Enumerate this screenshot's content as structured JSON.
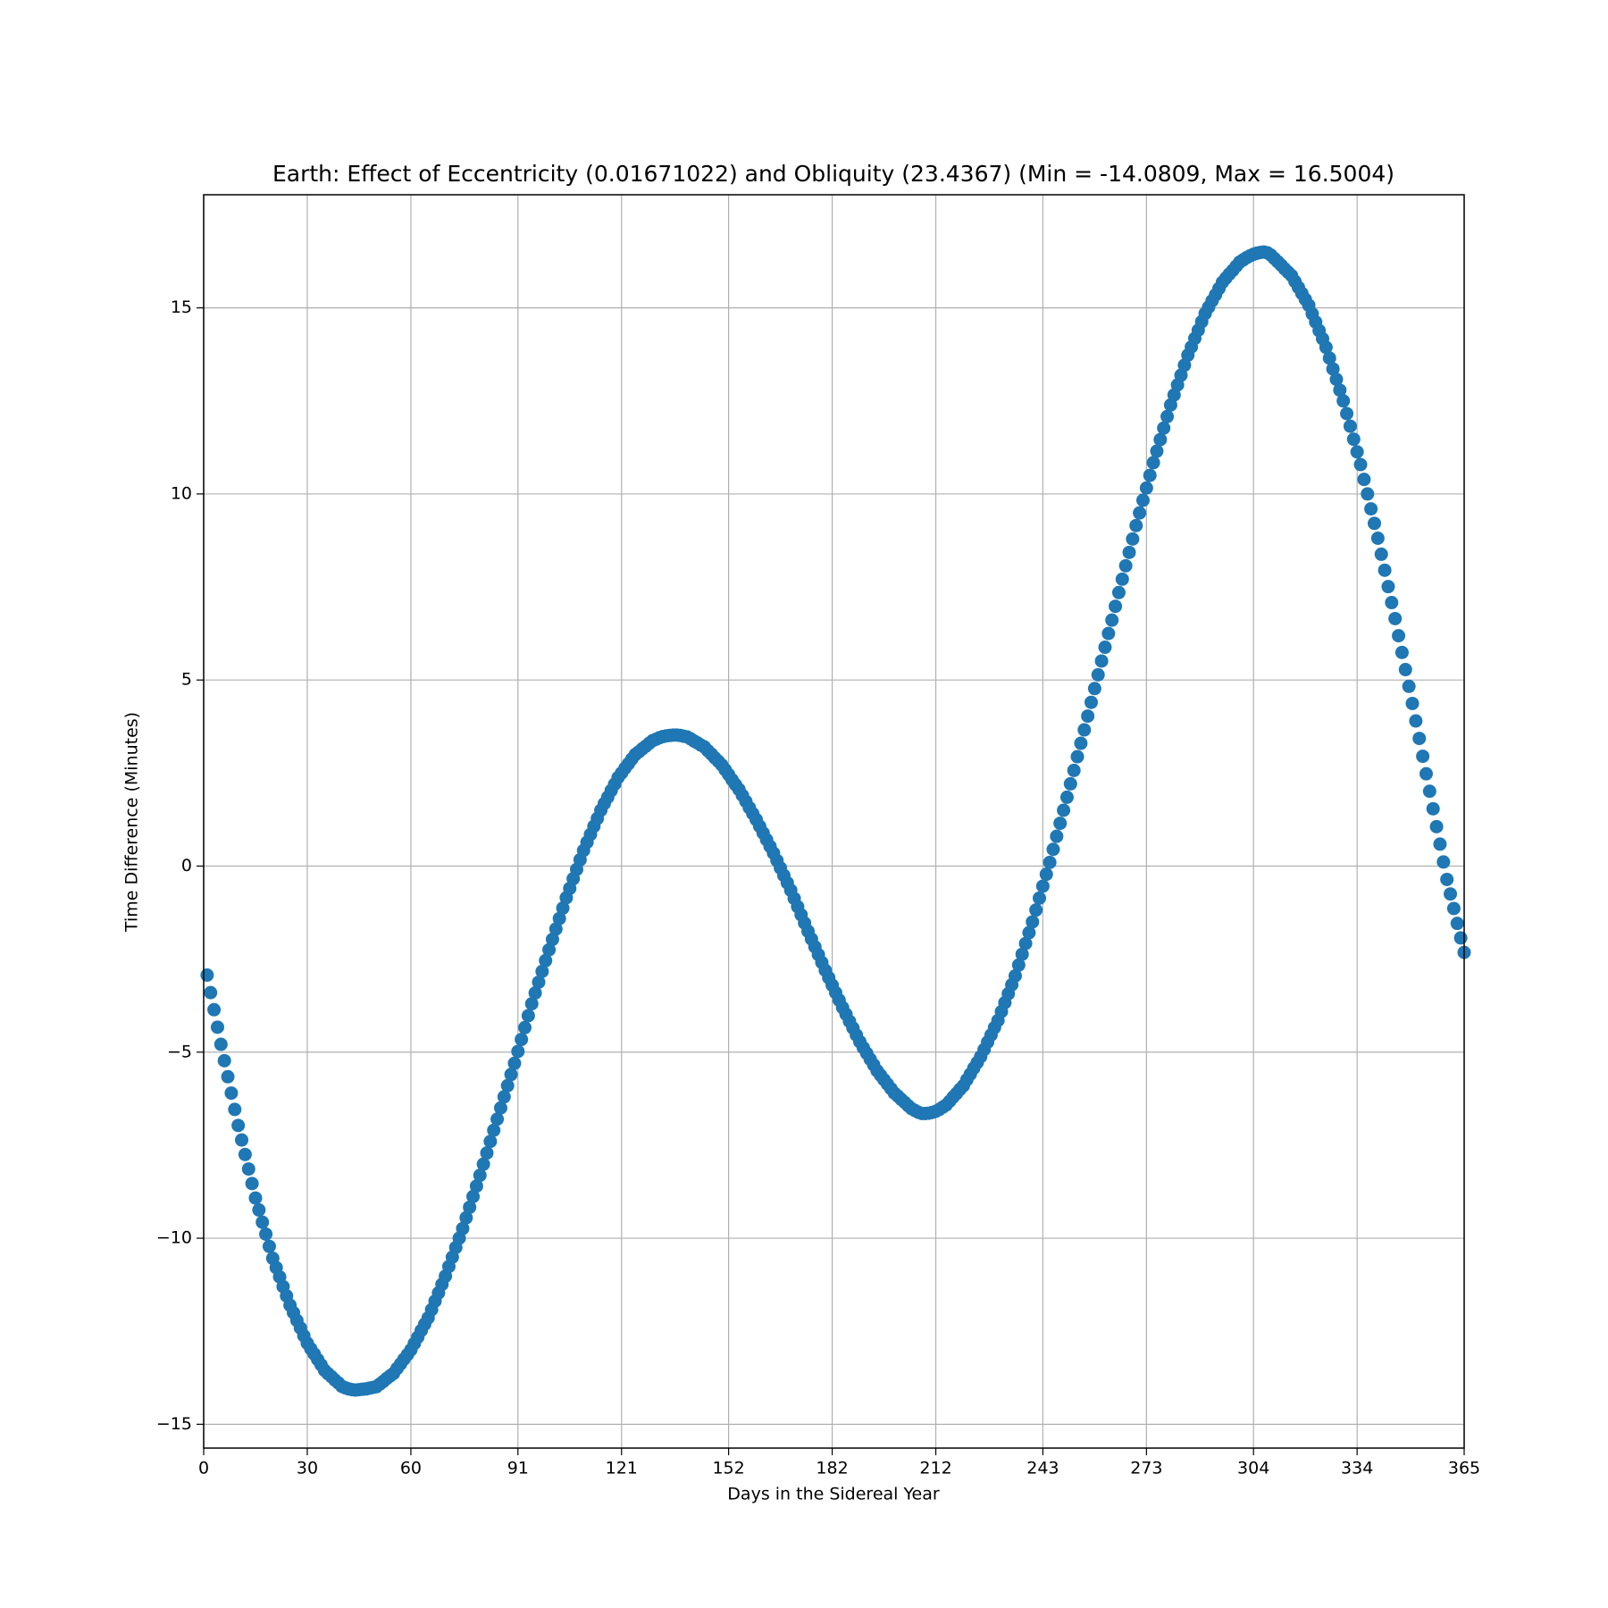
{
  "chart_data": {
    "type": "scatter",
    "title": "Earth: Effect of Eccentricity (0.01671022) and Obliquity (23.4367) (Min = -14.0809, Max = 16.5004)",
    "xlabel": "Days in the Sidereal Year",
    "ylabel": "Time Difference (Minutes)",
    "color": "#1f77b4",
    "grid": true,
    "xlim": [
      0,
      365
    ],
    "ylim": [
      -15.64,
      18.04
    ],
    "xticks": [
      0,
      30,
      60,
      91,
      121,
      152,
      182,
      212,
      243,
      273,
      304,
      334,
      365
    ],
    "yticks": [
      {
        "value": -15,
        "label": "−15"
      },
      {
        "value": -10,
        "label": "−10"
      },
      {
        "value": -5,
        "label": "−5"
      },
      0,
      5,
      10,
      15
    ],
    "x": [
      1,
      2,
      3,
      4,
      5,
      6,
      7,
      8,
      9,
      10,
      11,
      12,
      13,
      14,
      15,
      16,
      17,
      18,
      19,
      20,
      21,
      22,
      23,
      24,
      25,
      26,
      27,
      28,
      29,
      30,
      31,
      32,
      33,
      34,
      35,
      36,
      37,
      38,
      39,
      40,
      41,
      42,
      43,
      44,
      45,
      46,
      47,
      48,
      49,
      50,
      51,
      52,
      53,
      54,
      55,
      56,
      57,
      58,
      59,
      60,
      61,
      62,
      63,
      64,
      65,
      66,
      67,
      68,
      69,
      70,
      71,
      72,
      73,
      74,
      75,
      76,
      77,
      78,
      79,
      80,
      81,
      82,
      83,
      84,
      85,
      86,
      87,
      88,
      89,
      90,
      91,
      92,
      93,
      94,
      95,
      96,
      97,
      98,
      99,
      100,
      101,
      102,
      103,
      104,
      105,
      106,
      107,
      108,
      109,
      110,
      111,
      112,
      113,
      114,
      115,
      116,
      117,
      118,
      119,
      120,
      121,
      122,
      123,
      124,
      125,
      126,
      127,
      128,
      129,
      130,
      131,
      132,
      133,
      134,
      135,
      136,
      137,
      138,
      139,
      140,
      141,
      142,
      143,
      144,
      145,
      146,
      147,
      148,
      149,
      150,
      151,
      152,
      153,
      154,
      155,
      156,
      157,
      158,
      159,
      160,
      161,
      162,
      163,
      164,
      165,
      166,
      167,
      168,
      169,
      170,
      171,
      172,
      173,
      174,
      175,
      176,
      177,
      178,
      179,
      180,
      181,
      182,
      183,
      184,
      185,
      186,
      187,
      188,
      189,
      190,
      191,
      192,
      193,
      194,
      195,
      196,
      197,
      198,
      199,
      200,
      201,
      202,
      203,
      204,
      205,
      206,
      207,
      208,
      209,
      210,
      211,
      212,
      213,
      214,
      215,
      216,
      217,
      218,
      219,
      220,
      221,
      222,
      223,
      224,
      225,
      226,
      227,
      228,
      229,
      230,
      231,
      232,
      233,
      234,
      235,
      236,
      237,
      238,
      239,
      240,
      241,
      242,
      243,
      244,
      245,
      246,
      247,
      248,
      249,
      250,
      251,
      252,
      253,
      254,
      255,
      256,
      257,
      258,
      259,
      260,
      261,
      262,
      263,
      264,
      265,
      266,
      267,
      268,
      269,
      270,
      271,
      272,
      273,
      274,
      275,
      276,
      277,
      278,
      279,
      280,
      281,
      282,
      283,
      284,
      285,
      286,
      287,
      288,
      289,
      290,
      291,
      292,
      293,
      294,
      295,
      296,
      297,
      298,
      299,
      300,
      301,
      302,
      303,
      304,
      305,
      306,
      307,
      308,
      309,
      310,
      311,
      312,
      313,
      314,
      315,
      316,
      317,
      318,
      319,
      320,
      321,
      322,
      323,
      324,
      325,
      326,
      327,
      328,
      329,
      330,
      331,
      332,
      333,
      334,
      335,
      336,
      337,
      338,
      339,
      340,
      341,
      342,
      343,
      344,
      345,
      346,
      347,
      348,
      349,
      350,
      351,
      352,
      353,
      354,
      355,
      356,
      357,
      358,
      359,
      360,
      361,
      362,
      363,
      364,
      365
    ],
    "values": [
      -2.93,
      -3.4,
      -3.86,
      -4.33,
      -4.79,
      -5.23,
      -5.66,
      -6.1,
      -6.54,
      -6.97,
      -7.36,
      -7.75,
      -8.14,
      -8.53,
      -8.92,
      -9.24,
      -9.57,
      -9.89,
      -10.22,
      -10.54,
      -10.79,
      -11.04,
      -11.3,
      -11.55,
      -11.8,
      -12.0,
      -12.21,
      -12.41,
      -12.62,
      -12.82,
      -12.97,
      -13.11,
      -13.26,
      -13.4,
      -13.55,
      -13.64,
      -13.72,
      -13.81,
      -13.89,
      -13.98,
      -14.02,
      -14.05,
      -14.07,
      -14.08,
      -14.07,
      -14.06,
      -14.05,
      -14.03,
      -14.01,
      -13.99,
      -13.92,
      -13.85,
      -13.77,
      -13.7,
      -13.63,
      -13.5,
      -13.38,
      -13.25,
      -13.13,
      -13.0,
      -12.83,
      -12.66,
      -12.48,
      -12.31,
      -12.14,
      -11.92,
      -11.69,
      -11.47,
      -11.24,
      -11.02,
      -10.76,
      -10.51,
      -10.25,
      -10.0,
      -9.74,
      -9.45,
      -9.17,
      -8.88,
      -8.6,
      -8.31,
      -8.01,
      -7.71,
      -7.4,
      -7.1,
      -6.8,
      -6.5,
      -6.2,
      -5.9,
      -5.6,
      -5.3,
      -4.98,
      -4.66,
      -4.34,
      -4.02,
      -3.7,
      -3.41,
      -3.12,
      -2.83,
      -2.54,
      -2.25,
      -1.97,
      -1.69,
      -1.41,
      -1.13,
      -0.85,
      -0.6,
      -0.34,
      -0.09,
      0.17,
      0.42,
      0.64,
      0.85,
      1.07,
      1.28,
      1.5,
      1.68,
      1.85,
      2.03,
      2.2,
      2.38,
      2.5,
      2.63,
      2.75,
      2.88,
      3.0,
      3.07,
      3.15,
      3.22,
      3.3,
      3.37,
      3.41,
      3.45,
      3.48,
      3.5,
      3.51,
      3.52,
      3.52,
      3.51,
      3.49,
      3.47,
      3.42,
      3.36,
      3.31,
      3.25,
      3.2,
      3.1,
      3.01,
      2.91,
      2.82,
      2.72,
      2.59,
      2.46,
      2.32,
      2.19,
      2.06,
      1.9,
      1.74,
      1.57,
      1.41,
      1.25,
      1.07,
      0.89,
      0.71,
      0.53,
      0.35,
      0.15,
      -0.05,
      -0.25,
      -0.45,
      -0.65,
      -0.87,
      -1.09,
      -1.31,
      -1.53,
      -1.75,
      -1.96,
      -2.17,
      -2.38,
      -2.59,
      -2.8,
      -3.0,
      -3.2,
      -3.4,
      -3.6,
      -3.8,
      -3.98,
      -4.17,
      -4.35,
      -4.54,
      -4.72,
      -4.88,
      -5.03,
      -5.19,
      -5.34,
      -5.5,
      -5.62,
      -5.74,
      -5.86,
      -5.98,
      -6.1,
      -6.18,
      -6.27,
      -6.35,
      -6.44,
      -6.52,
      -6.57,
      -6.62,
      -6.65,
      -6.65,
      -6.64,
      -6.62,
      -6.59,
      -6.54,
      -6.48,
      -6.42,
      -6.32,
      -6.21,
      -6.11,
      -6.0,
      -5.9,
      -5.74,
      -5.59,
      -5.43,
      -5.28,
      -5.12,
      -4.93,
      -4.73,
      -4.54,
      -4.34,
      -4.15,
      -3.91,
      -3.67,
      -3.43,
      -3.19,
      -2.95,
      -2.66,
      -2.37,
      -2.08,
      -1.79,
      -1.5,
      -1.18,
      -0.86,
      -0.54,
      -0.22,
      0.1,
      0.45,
      0.8,
      1.15,
      1.5,
      1.85,
      2.21,
      2.57,
      2.94,
      3.3,
      3.66,
      4.03,
      4.4,
      4.77,
      5.14,
      5.51,
      5.88,
      6.25,
      6.61,
      6.98,
      7.35,
      7.71,
      8.07,
      8.43,
      8.79,
      9.15,
      9.49,
      9.83,
      10.16,
      10.5,
      10.84,
      11.15,
      11.46,
      11.77,
      12.08,
      12.39,
      12.66,
      12.93,
      13.19,
      13.46,
      13.73,
      13.95,
      14.18,
      14.4,
      14.63,
      14.85,
      15.02,
      15.19,
      15.35,
      15.52,
      15.69,
      15.8,
      15.91,
      16.01,
      16.12,
      16.23,
      16.29,
      16.35,
      16.4,
      16.44,
      16.47,
      16.49,
      16.5,
      16.48,
      16.42,
      16.33,
      16.24,
      16.15,
      16.05,
      15.96,
      15.87,
      15.71,
      15.55,
      15.39,
      15.23,
      15.07,
      14.84,
      14.62,
      14.39,
      14.17,
      13.94,
      13.65,
      13.36,
      13.08,
      12.79,
      12.5,
      12.16,
      11.82,
      11.47,
      11.13,
      10.79,
      10.39,
      10.0,
      9.6,
      9.21,
      8.81,
      8.38,
      7.95,
      7.51,
      7.08,
      6.65,
      6.19,
      5.74,
      5.28,
      4.83,
      4.37,
      3.9,
      3.43,
      2.95,
      2.48,
      2.01,
      1.54,
      1.06,
      0.59,
      0.11,
      -0.36,
      -0.75,
      -1.14,
      -1.54,
      -1.93,
      -2.32
    ]
  }
}
